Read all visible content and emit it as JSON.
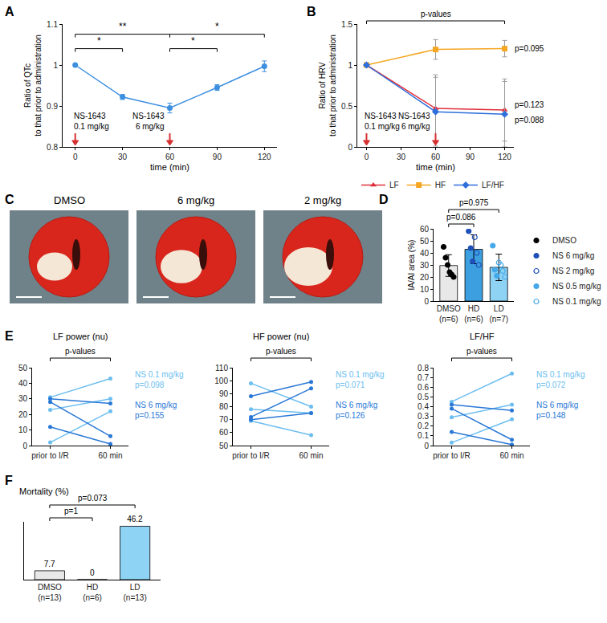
{
  "chart_data": [
    {
      "label": "A",
      "type": "line",
      "x": [
        0,
        30,
        60,
        90,
        120
      ],
      "values": [
        1,
        0.922,
        0.895,
        0.945,
        0.997
      ],
      "error": [
        0,
        0.006,
        0.012,
        0.007,
        0.013
      ],
      "color": "#3d8fe0",
      "marker": "circle",
      "xlabel": "time (min)",
      "ylabel": [
        "Ratio of QTc",
        "to that prior to administration"
      ],
      "xlim": [
        -8,
        128
      ],
      "xticks": [
        0,
        30,
        60,
        90,
        120
      ],
      "ylim": [
        0.8,
        1.1
      ],
      "yticks": [
        0.8,
        0.9,
        1,
        1.1
      ],
      "annotations": [
        {
          "x": 0,
          "text": "NS-1643 0.1 mg/kg"
        },
        {
          "x": 60,
          "text": "NS-1643 6 mg/kg"
        }
      ],
      "brackets": [
        {
          "from": 0,
          "to": 30,
          "text": "*"
        },
        {
          "from": 0,
          "to": 60,
          "text": "**"
        },
        {
          "from": 60,
          "to": 90,
          "text": "*"
        },
        {
          "from": 60,
          "to": 120,
          "text": "*"
        }
      ]
    },
    {
      "label": "B",
      "type": "line",
      "x": [
        0,
        60,
        120
      ],
      "series": [
        {
          "name": "LF",
          "color": "#e0303c",
          "marker": "triangle-up",
          "values": [
            1,
            0.47,
            0.45
          ],
          "error": [
            0,
            0.41,
            0.38
          ],
          "annotation": "p=0.123"
        },
        {
          "name": "HF",
          "color": "#f5a623",
          "marker": "square",
          "values": [
            1,
            1.19,
            1.2
          ],
          "error": [
            0,
            0.12,
            0.1
          ],
          "annotation": "p=0.095"
        },
        {
          "name": "LF/HF",
          "color": "#2f6fdc",
          "marker": "diamond",
          "values": [
            1,
            0.43,
            0.4
          ],
          "error": [
            0,
            0.42,
            0.4
          ],
          "annotation": "p=0.088"
        }
      ],
      "xlabel": "time (min)",
      "ylabel": [
        "Ratio of HRV",
        "to that prior to administration"
      ],
      "xlim": [
        -8,
        128
      ],
      "xticks": [
        0,
        30,
        60,
        90,
        120
      ],
      "ylim": [
        0,
        1.5
      ],
      "yticks": [
        0,
        0.5,
        1,
        1.5
      ],
      "legend": "bottom",
      "annotations": [
        {
          "x": 0,
          "text": "NS-1643 0.1 mg/kg"
        },
        {
          "x": 60,
          "text": "NS-1643 6 mg/kg"
        }
      ],
      "brackets": [
        {
          "from": 0,
          "to": 120,
          "text": "p-values"
        }
      ]
    },
    {
      "label": "C",
      "type": "image",
      "panels": [
        "DMSO",
        "6 mg/kg",
        "2 mg/kg"
      ]
    },
    {
      "label": "D",
      "type": "bar",
      "categories": [
        "DMSO (n=6)",
        "HD (n=6)",
        "LD (n=7)"
      ],
      "values": [
        29.5,
        43,
        28
      ],
      "error": [
        9,
        12,
        11
      ],
      "colors": [
        "#e8e8e8",
        "#3c9fe0",
        "#8fd3f4"
      ],
      "ylabel": "IA/AI area (%)",
      "ylim": [
        0,
        60
      ],
      "yticks": [
        0,
        10,
        20,
        30,
        40,
        50,
        60
      ],
      "legend": "right",
      "points": [
        {
          "name": "DMSO",
          "category": "DMSO (n=6)",
          "color": "#000000",
          "marker": "circle",
          "values": [
            45,
            36,
            30,
            24,
            22,
            20
          ]
        },
        {
          "name": "NS 6 mg/kg",
          "category": "HD (n=6)",
          "color": "#1f4fb8",
          "marker": "circle",
          "values": [
            58,
            44,
            33
          ]
        },
        {
          "name": "NS 2 mg/kg",
          "category": "HD (n=6)",
          "color": "#1f4fb8",
          "marker": "circle-open",
          "values": [
            53,
            40,
            30
          ]
        },
        {
          "name": "NS 0.5 mg/kg",
          "category": "LD (n=7)",
          "color": "#45a8e8",
          "marker": "circle",
          "values": [
            46,
            26,
            21
          ]
        },
        {
          "name": "NS 0.1 mg/kg",
          "category": "LD (n=7)",
          "color": "#45a8e8",
          "marker": "circle-open",
          "values": [
            32,
            30,
            25,
            20
          ]
        }
      ],
      "brackets": [
        {
          "from": 0,
          "to": 1,
          "text": "p=0.086"
        },
        {
          "from": 0,
          "to": 2,
          "text": "p=0.975"
        }
      ]
    },
    {
      "label": "E",
      "type": "line",
      "categories": [
        "prior to I/R",
        "60 min"
      ],
      "panels": [
        {
          "title": "LF power (nu)",
          "ylim": [
            0,
            50
          ],
          "yticks": [
            0,
            10,
            20,
            30,
            40,
            50
          ],
          "series": [
            {
              "name": "NS 0.1 mg/kg",
              "color": "#6cbef0",
              "annotation": "p=0.098",
              "subjects": [
                [
                  31,
                  43
                ],
                [
                  23,
                  30
                ],
                [
                  2,
                  22
                ]
              ]
            },
            {
              "name": "NS 6 mg/kg",
              "color": "#2a78d6",
              "annotation": "p=0.155",
              "subjects": [
                [
                  30,
                  27
                ],
                [
                  28,
                  6
                ],
                [
                  12,
                  1
                ]
              ]
            }
          ]
        },
        {
          "title": "HF power (nu)",
          "ylim": [
            50,
            110
          ],
          "yticks": [
            50,
            60,
            70,
            80,
            90,
            100,
            110
          ],
          "series": [
            {
              "name": "NS 0.1 mg/kg",
              "color": "#6cbef0",
              "annotation": "p=0.071",
              "subjects": [
                [
                  98,
                  80
                ],
                [
                  78,
                  75
                ],
                [
                  69,
                  58
                ]
              ]
            },
            {
              "name": "NS 6 mg/kg",
              "color": "#2a78d6",
              "annotation": "p=0.126",
              "subjects": [
                [
                  88,
                  99
                ],
                [
                  72,
                  94
                ],
                [
                  70,
                  75
                ]
              ]
            }
          ]
        },
        {
          "title": "LF/HF",
          "ylim": [
            0,
            0.8
          ],
          "yticks": [
            0,
            0.1,
            0.2,
            0.3,
            0.4,
            0.5,
            0.6,
            0.7,
            0.8
          ],
          "series": [
            {
              "name": "NS 0.1 mg/kg",
              "color": "#6cbef0",
              "annotation": "p=0.072",
              "subjects": [
                [
                  0.45,
                  0.74
                ],
                [
                  0.29,
                  0.42
                ],
                [
                  0.03,
                  0.27
                ]
              ]
            },
            {
              "name": "NS 6 mg/kg",
              "color": "#2a78d6",
              "annotation": "p=0.148",
              "subjects": [
                [
                  0.42,
                  0.36
                ],
                [
                  0.38,
                  0.06
                ],
                [
                  0.14,
                  0.01
                ]
              ]
            }
          ]
        }
      ],
      "brackets": [
        {
          "from": 0,
          "to": 1,
          "text": "p-values"
        }
      ]
    },
    {
      "label": "F",
      "type": "bar",
      "title": "Mortality (%)",
      "categories": [
        "DMSO (n=13)",
        "HD (n=6)",
        "LD (n=13)"
      ],
      "values": [
        7.7,
        0,
        46.2
      ],
      "colors": [
        "#e8e8e8",
        "#3c9fe0",
        "#8fd3f4"
      ],
      "ylim": [
        0,
        50
      ],
      "data_labels": true,
      "tick_labels": "x",
      "brackets": [
        {
          "from": 0,
          "to": 1,
          "text": "p=1"
        },
        {
          "from": 0,
          "to": 2,
          "text": "p=0.073"
        }
      ]
    }
  ]
}
